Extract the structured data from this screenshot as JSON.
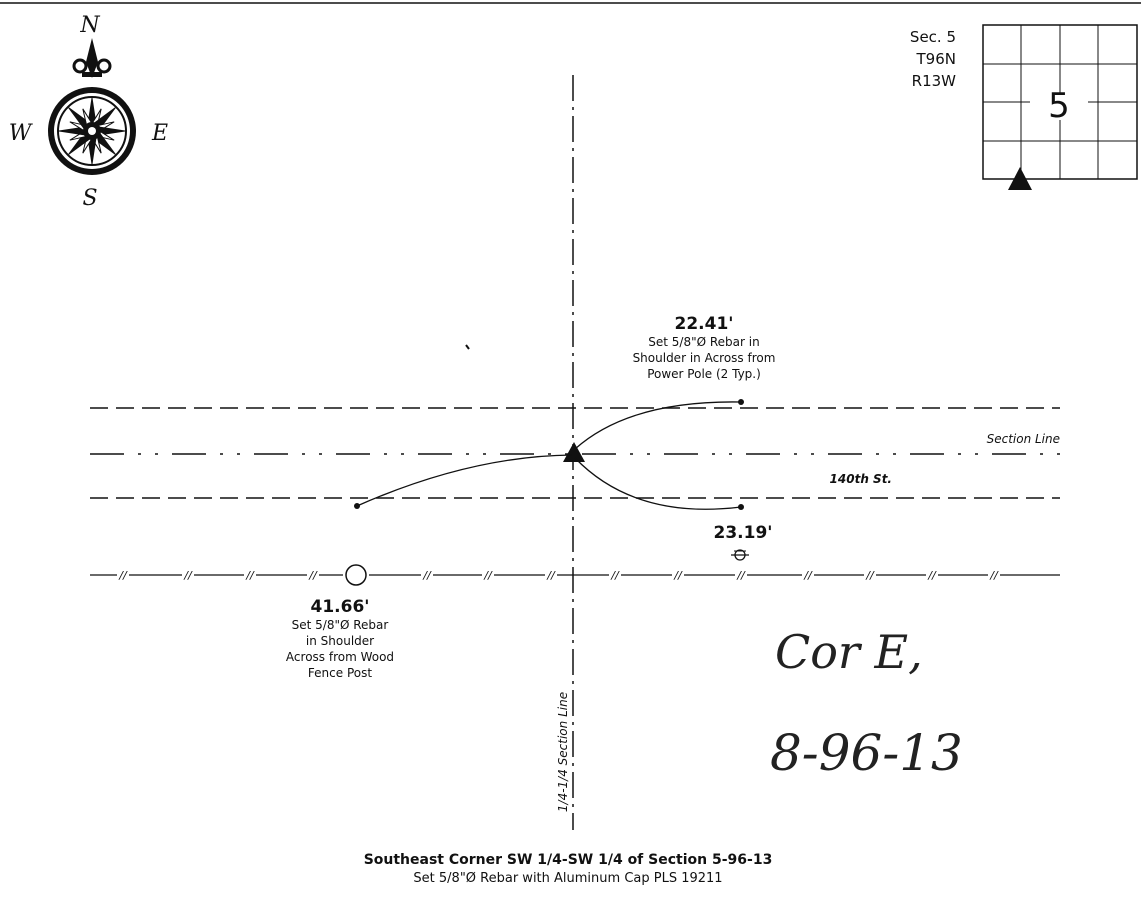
{
  "compass": {
    "north": "N",
    "south": "S",
    "east": "E",
    "west": "W"
  },
  "section_box": {
    "line1": "Sec. 5",
    "line2": "T96N",
    "line3": "R13W",
    "number": "5"
  },
  "labels": {
    "section_line": "Section Line",
    "street": "140th St.",
    "quarter_line": "1/4-1/4 Section Line",
    "fence_mark": "//"
  },
  "ties": [
    {
      "distance": "22.41'",
      "desc": [
        "Set 5/8\"Ø Rebar in",
        "Shoulder in Across from",
        "Power Pole (2 Typ.)"
      ]
    },
    {
      "distance": "23.19'",
      "desc": []
    },
    {
      "distance": "41.66'",
      "desc": [
        "Set 5/8\"Ø Rebar",
        "in Shoulder",
        "Across from Wood",
        "Fence Post"
      ]
    }
  ],
  "handwritten": {
    "line1": "Cor E,",
    "line2": "8-96-13"
  },
  "footer": {
    "title": "Southeast Corner SW 1/4-SW 1/4 of Section 5-96-13",
    "subtitle": "Set 5/8\"Ø Rebar with Aluminum Cap PLS 19211"
  },
  "colors": {
    "ink": "#111111",
    "background": "#ffffff"
  }
}
